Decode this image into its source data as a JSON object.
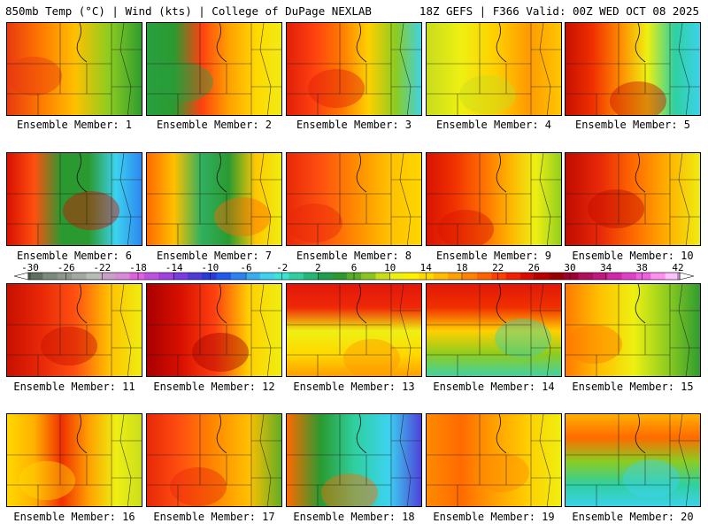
{
  "header": {
    "left_title": "850mb Temp (°C) | Wind (kts) | College of DuPage NEXLAB",
    "right_title": "18Z GEFS | F366 Valid: 00Z WED OCT 08 2025"
  },
  "member_prefix": "Ensemble Member: ",
  "members": [
    {
      "label": "Ensemble Member: 1"
    },
    {
      "label": "Ensemble Member: 2"
    },
    {
      "label": "Ensemble Member: 3"
    },
    {
      "label": "Ensemble Member: 4"
    },
    {
      "label": "Ensemble Member: 5"
    },
    {
      "label": "Ensemble Member: 6"
    },
    {
      "label": "Ensemble Member: 7"
    },
    {
      "label": "Ensemble Member: 8"
    },
    {
      "label": "Ensemble Member: 9"
    },
    {
      "label": "Ensemble Member: 10"
    },
    {
      "label": "Ensemble Member: 11"
    },
    {
      "label": "Ensemble Member: 12"
    },
    {
      "label": "Ensemble Member: 13"
    },
    {
      "label": "Ensemble Member: 14"
    },
    {
      "label": "Ensemble Member: 15"
    },
    {
      "label": "Ensemble Member: 16"
    },
    {
      "label": "Ensemble Member: 17"
    },
    {
      "label": "Ensemble Member: 18"
    },
    {
      "label": "Ensemble Member: 19"
    },
    {
      "label": "Ensemble Member: 20"
    }
  ],
  "colorbar": {
    "tick_labels": [
      "-30",
      "-26",
      "-22",
      "-18",
      "-14",
      "-10",
      "-6",
      "-2",
      "2",
      "6",
      "10",
      "14",
      "18",
      "22",
      "26",
      "30",
      "34",
      "38",
      "42"
    ],
    "colors": [
      "#5f6e5f",
      "#7b8a7b",
      "#8d978d",
      "#a2a9a2",
      "#b7bcb7",
      "#c9a0c9",
      "#d98ad9",
      "#e060e0",
      "#c050e0",
      "#a040e0",
      "#7a3ae0",
      "#4f3ad8",
      "#2a3ad8",
      "#1f5ae8",
      "#2c82f0",
      "#36aef0",
      "#3cd2f0",
      "#3ce4d8",
      "#2fd0a0",
      "#23b878",
      "#1e9e4e",
      "#2a9a30",
      "#5aac28",
      "#8cc422",
      "#c8dc1e",
      "#eef012",
      "#fff000",
      "#ffd800",
      "#ffbc00",
      "#ffa000",
      "#ff8200",
      "#ff6400",
      "#ff4000",
      "#f02000",
      "#d80c00",
      "#b80000",
      "#980000",
      "#a00030",
      "#b0105a",
      "#c01880",
      "#d028a8",
      "#e040c8",
      "#f060e0",
      "#ff90f0",
      "#ffc0ff"
    ]
  }
}
